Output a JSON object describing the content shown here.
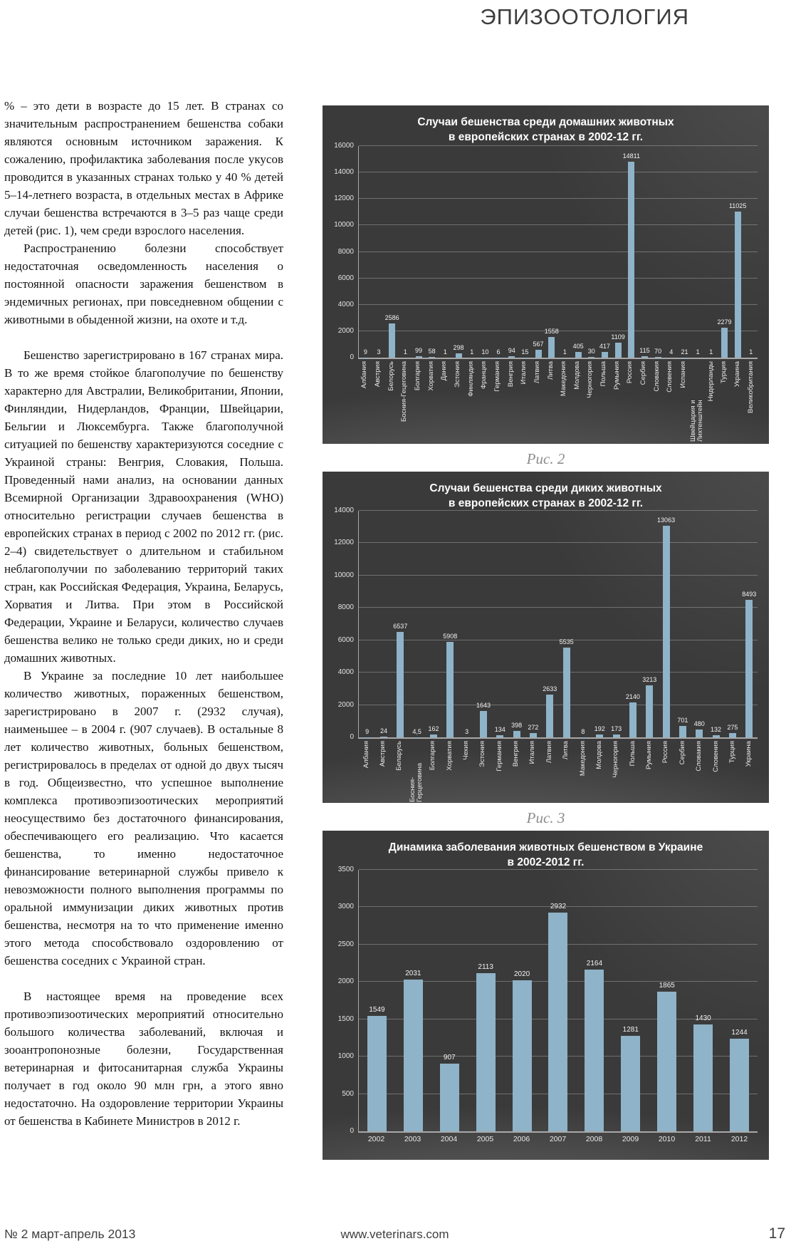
{
  "header": {
    "title": "ЭПИЗООТОЛОГИЯ"
  },
  "article": {
    "paragraphs": [
      {
        "indent": false,
        "gap_before": false,
        "text": "% – это дети в возрасте до 15 лет. В странах со значительным распространением бешенства собаки являются основным источником заражения. К сожалению, профилактика заболевания после укусов проводится в указанных странах только у 40 % детей 5–14-летнего возраста, в отдельных местах в Африке случаи бешенства встречаются в 3–5 раз чаще среди детей (рис. 1), чем среди взрослого населения."
      },
      {
        "indent": true,
        "gap_before": false,
        "text": "Распространению болезни способствует недостаточная осведомленность населения о постоянной опасности заражения бешенством в эндемичных регионах, при повседневном общении с животными в обыденной жизни, на охоте и т.д."
      },
      {
        "indent": true,
        "gap_before": true,
        "text": "Бешенство зарегистрировано в 167 странах мира. В то же время стойкое благополучие по бешенству характерно для Австралии, Великобритании, Японии, Финляндии, Нидерландов, Франции, Швейцарии, Бельгии и Люксембурга. Также благополучной ситуацией по бешенству характеризуются соседние с Украиной страны: Венгрия, Словакия, Польша. Проведенный нами анализ, на основании данных Всемирной Организации Здравоохранения (WHO) относительно регистрации случаев бешенства в европейских странах в период с 2002 по 2012 гг. (рис. 2–4) свидетельствует о длительном и стабильном неблагополучии по заболеванию территорий таких стран, как Российская Федерация, Украина, Беларусь, Хорватия и Литва. При этом в Российской Федерации, Украине и Беларуси, количество случаев бешенства велико не только среди диких, но и среди домашних животных."
      },
      {
        "indent": true,
        "gap_before": false,
        "text": "В Украине за последние 10 лет наибольшее количество животных, пораженных бешенством, зарегистрировано в 2007 г. (2932 случая), наименьшее – в 2004 г. (907 случаев). В остальные 8 лет количество животных, больных бешенством, регистрировалось в пределах от одной до двух тысяч в год. Общеизвестно, что успешное выполнение комплекса противоэпизоотических мероприятий неосуществимо без достаточного финансирования, обеспечивающего его реализацию. Что касается бешенства, то именно недостаточное финансирование ветеринарной службы привело к невозможности полного выполнения программы по оральной иммунизации диких животных против бешенства, несмотря на то что применение именно этого метода способствовало оздоровлению от бешенства соседних с Украиной стран."
      },
      {
        "indent": true,
        "gap_before": true,
        "text": "В настоящее время на проведение всех противоэпизоотических мероприятий относительно большого количества заболеваний, включая и зооантропонозные болезни, Государственная ветеринарная и фитосанитарная служба Украины получает в год около 90 млн грн, а этого явно недостаточно. На оздоровление территории Украины от бешенства в Кабинете Министров в 2012 г."
      }
    ]
  },
  "figures": {
    "captions": [
      "Рис. 2",
      "Рис. 3"
    ]
  },
  "colors": {
    "bar": "#8fb3c8",
    "panel_bg": "#3a3a3a",
    "grid": "rgba(255,255,255,0.27)"
  },
  "chart_data": [
    {
      "type": "bar",
      "title": "Случаи бешенства среди домашних животных в европейских странах в 2002-12 гг.",
      "title_lines": [
        "Случаи бешенства среди домашних животных",
        "в европейских странах в 2002-12 гг."
      ],
      "categories": [
        "Албания",
        "Австрия",
        "Белорусь",
        "Босния-Гецеговина",
        "Болгария",
        "Хорватия",
        "Дания",
        "Эстония",
        "Финляндия",
        "Франция",
        "Германия",
        "Венгрия",
        "Италия",
        "Латвия",
        "Литва",
        "Македония",
        "Молдова",
        "Черногория",
        "Польша",
        "Румыния",
        "Россия",
        "Сербия",
        "Словакия",
        "Словения",
        "Испания",
        "Швейцария и Лихтенштейн",
        "Нидерланды",
        "Турция",
        "Украина",
        "Великобритания"
      ],
      "values": [
        9,
        3,
        2586,
        1,
        99,
        58,
        1,
        298,
        1,
        10,
        6,
        94,
        15,
        567,
        1558,
        1,
        405,
        30,
        417,
        1109,
        14811,
        115,
        70,
        4,
        21,
        1,
        1,
        2279,
        11025,
        1
      ],
      "bar_labels": [
        "9",
        "3",
        "2586",
        "1",
        "99",
        "58",
        "1",
        "298",
        "1",
        "10",
        "6",
        "94",
        "15",
        "567",
        "1558",
        "1",
        "405",
        "30",
        "417",
        "1109",
        "14811",
        "115",
        "70",
        "4",
        "21",
        "1",
        "1",
        "2279",
        "11025",
        "1"
      ],
      "ylim": [
        0,
        16000
      ],
      "ytick_step": 2000,
      "grid": true,
      "legend": false,
      "xlabel": "",
      "ylabel": ""
    },
    {
      "type": "bar",
      "title": "Случаи бешенства среди диких животных в европейских странах в 2002-12 гг.",
      "title_lines": [
        "Случаи бешенства среди диких животных",
        "в европейских странах в 2002-12 гг."
      ],
      "categories": [
        "Албания",
        "Австрия",
        "Беларусь",
        "Босния-Герцеговина",
        "Болгария",
        "Хорватия",
        "Чехия",
        "Эстония",
        "Германия",
        "Венгрия",
        "Италия",
        "Латвия",
        "Литва",
        "Македония",
        "Молдова",
        "Черногория",
        "Польша",
        "Румыния",
        "Россия",
        "Сербия",
        "Словакия",
        "Словения",
        "Турция",
        "Украина"
      ],
      "values": [
        9,
        24,
        6537,
        4.5,
        162,
        5908,
        3,
        1643,
        134,
        398,
        272,
        2633,
        5535,
        8,
        192,
        173,
        2140,
        3213,
        13063,
        701,
        480,
        132,
        275,
        8493
      ],
      "bar_labels": [
        "9",
        "24",
        "6537",
        "4,5",
        "162",
        "5908",
        "3",
        "1643",
        "134",
        "398",
        "272",
        "2633",
        "5535",
        "8",
        "192",
        "173",
        "2140",
        "3213",
        "13063",
        "701",
        "480",
        "132",
        "275",
        "8493"
      ],
      "ylim": [
        0,
        14000
      ],
      "ytick_step": 2000,
      "grid": true,
      "legend": false,
      "xlabel": "",
      "ylabel": ""
    },
    {
      "type": "bar",
      "title": "Динамика заболевания животных бешенством в Украине в 2002-2012 гг.",
      "title_lines": [
        "Динамика заболевания животных бешенством в Украине",
        "в 2002-2012 гг."
      ],
      "categories": [
        "2002",
        "2003",
        "2004",
        "2005",
        "2006",
        "2007",
        "2008",
        "2009",
        "2010",
        "2011",
        "2012"
      ],
      "values": [
        1549,
        2031,
        907,
        2113,
        2020,
        2932,
        2164,
        1281,
        1865,
        1430,
        1244
      ],
      "bar_labels": [
        "1549",
        "2031",
        "907",
        "2113",
        "2020",
        "2932",
        "2164",
        "1281",
        "1865",
        "1430",
        "1244"
      ],
      "ylim": [
        0,
        3500
      ],
      "ytick_step": 500,
      "grid": true,
      "legend": false,
      "xlabel": "",
      "ylabel": ""
    }
  ],
  "footer": {
    "issue": "№ 2 март-апрель 2013",
    "site": "www.veterinars.com",
    "page": "17"
  }
}
